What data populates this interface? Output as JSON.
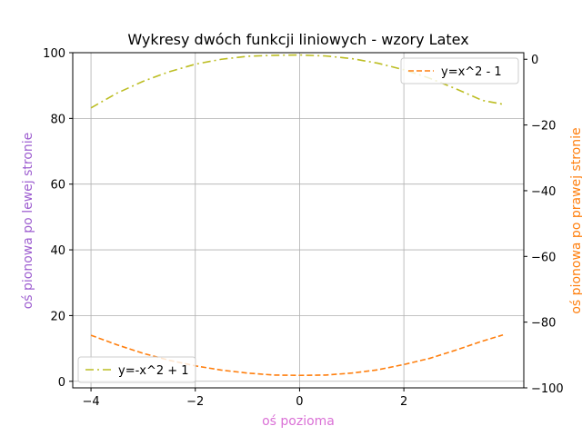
{
  "chart_data": {
    "type": "line",
    "title": "Wykresy dwóch funkcji liniowych - wzory Latex",
    "xlabel": "oś pozioma",
    "ylabel_left": "oś pionowa po lewej stronie",
    "ylabel_right": "oś pionowa po prawej stronie",
    "xlabel_color": "#da70d6",
    "ylabel_left_color": "#9e5fd0",
    "ylabel_right_color": "#ff7f0e",
    "grid": true,
    "x_ticks": [
      -4,
      -2,
      0,
      2
    ],
    "x_tick_labels": [
      "−4",
      "−2",
      "0",
      "2"
    ],
    "xlim": [
      -4.35,
      4.3
    ],
    "ylim_left": [
      -2,
      100
    ],
    "ylim_right": [
      -100,
      2
    ],
    "y_left_ticks": [
      0,
      20,
      40,
      60,
      80,
      100
    ],
    "y_left_tick_labels": [
      "0",
      "20",
      "40",
      "60",
      "80",
      "100"
    ],
    "y_right_ticks": [
      0,
      -20,
      -40,
      -60,
      -80,
      -100
    ],
    "y_right_tick_labels": [
      "0",
      "−20",
      "−40",
      "−60",
      "−80",
      "−100"
    ],
    "series": [
      {
        "name": "y=-x^2 + 1",
        "axis": "left",
        "color": "#bcbd22",
        "dash": "dashdot",
        "x": [
          -4,
          -3.5,
          -3,
          -2.5,
          -2,
          -1.5,
          -1,
          -0.5,
          0,
          0.5,
          1,
          1.5,
          2,
          2.5,
          3,
          3.5,
          3.9
        ],
        "y": [
          83.2,
          87.7,
          91.3,
          94.2,
          96.5,
          98.0,
          98.9,
          99.2,
          99.3,
          99.0,
          98.2,
          96.8,
          94.8,
          92.2,
          89.0,
          85.5,
          84.3
        ],
        "legend_position": "lower-left"
      },
      {
        "name": "y=x^2 - 1",
        "axis": "right",
        "color": "#ff7f0e",
        "dash": "dashed",
        "x": [
          -4,
          -3.5,
          -3,
          -2.5,
          -2,
          -1.5,
          -1,
          -0.5,
          0,
          0.5,
          1,
          1.5,
          2,
          2.5,
          3,
          3.5,
          3.9
        ],
        "y": [
          -84.0,
          -86.9,
          -89.5,
          -91.6,
          -93.3,
          -94.6,
          -95.5,
          -96.1,
          -96.2,
          -96.1,
          -95.5,
          -94.5,
          -92.9,
          -91.0,
          -88.5,
          -85.8,
          -83.9
        ],
        "legend_position": "upper-right"
      }
    ]
  }
}
